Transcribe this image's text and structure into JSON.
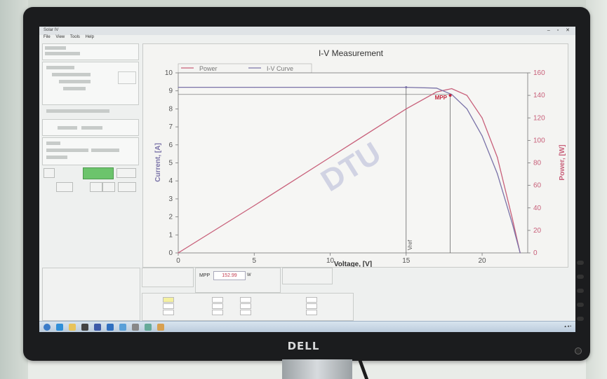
{
  "window": {
    "title": "Solar IV",
    "menu": [
      "File",
      "View",
      "Tools",
      "Help"
    ]
  },
  "chart_data": {
    "type": "line",
    "title": "I-V Measurement",
    "xlabel": "Voltage, [V]",
    "ylabel_left": "Current, [A]",
    "ylabel_right": "Power, [W]",
    "xlim": [
      0,
      23
    ],
    "ylim_left": [
      0,
      10
    ],
    "ylim_right": [
      0,
      160
    ],
    "x_ticks": [
      0,
      5,
      10,
      15,
      20
    ],
    "y_ticks_left": [
      0,
      1,
      2,
      3,
      4,
      5,
      6,
      7,
      8,
      9,
      10
    ],
    "y_ticks_right": [
      0,
      20,
      40,
      60,
      80,
      100,
      120,
      140,
      160
    ],
    "grid": false,
    "legend_position": "top-left",
    "series": [
      {
        "name": "Power",
        "axis": "right",
        "color": "#c8607a",
        "x": [
          0,
          5,
          10,
          15,
          17,
          18,
          19,
          20,
          21,
          22,
          22.5
        ],
        "y": [
          0,
          42,
          85,
          128,
          143,
          146,
          140,
          120,
          85,
          30,
          0
        ]
      },
      {
        "name": "I-V Curve",
        "axis": "left",
        "color": "#7a73a8",
        "x": [
          0,
          5,
          10,
          15,
          17,
          18,
          19,
          20,
          21,
          22,
          22.5
        ],
        "y": [
          9.2,
          9.2,
          9.2,
          9.2,
          9.15,
          8.8,
          8.0,
          6.5,
          4.4,
          1.6,
          0
        ]
      }
    ],
    "annotations": [
      {
        "text": "MPP",
        "x": 17.9,
        "y_right": 140,
        "color": "#c2283d"
      },
      {
        "text": "Vref",
        "x": 15
      }
    ],
    "watermark": "DTU"
  },
  "results": {
    "mpp_label": "MPP",
    "mpp_value": "152.99",
    "mpp_unit": "W"
  },
  "colors": {
    "accent_green": "#6cc46c",
    "power_line": "#c8607a",
    "iv_line": "#7a73a8",
    "mpp_text": "#c23a4e"
  },
  "monitor": {
    "brand": "DELL"
  }
}
